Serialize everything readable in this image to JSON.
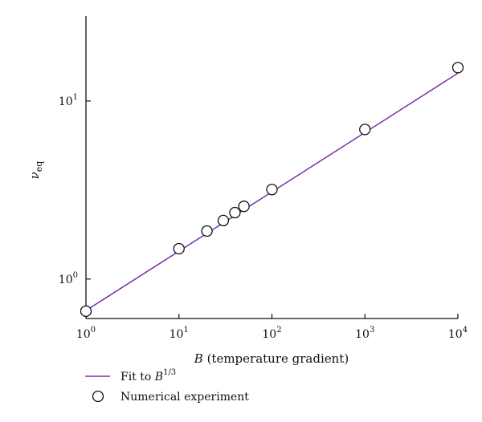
{
  "chart_data": {
    "type": "scatter",
    "title": "",
    "xscale": "log",
    "yscale": "log",
    "xlim": [
      1,
      10000
    ],
    "ylim": [
      0.6,
      30
    ],
    "grid": false,
    "legend_position": "bottom-left",
    "xlabel": {
      "symbol": "B",
      "text": " (temperature gradient)"
    },
    "ylabel": {
      "symbol": "ν",
      "subscript": "eq"
    },
    "x_ticks": [
      {
        "value": 1,
        "base": "10",
        "exp": "0"
      },
      {
        "value": 10,
        "base": "10",
        "exp": "1"
      },
      {
        "value": 100,
        "base": "10",
        "exp": "2"
      },
      {
        "value": 1000,
        "base": "10",
        "exp": "3"
      },
      {
        "value": 10000,
        "base": "10",
        "exp": "4"
      }
    ],
    "y_ticks": [
      {
        "value": 1,
        "base": "10",
        "exp": "0"
      },
      {
        "value": 10,
        "base": "10",
        "exp": "1"
      }
    ],
    "series": [
      {
        "name": "Numerical experiment",
        "kind": "markers",
        "marker": "open-circle",
        "x": [
          1,
          10,
          20,
          30,
          40,
          50,
          100,
          1000,
          10000
        ],
        "y": [
          0.66,
          1.48,
          1.86,
          2.13,
          2.36,
          2.56,
          3.18,
          6.92,
          15.4
        ]
      },
      {
        "name": "Fit to B^(1/3)",
        "kind": "line",
        "exponent": 0.3333,
        "coefficient": 0.665,
        "x": [
          1,
          10000
        ],
        "color": "#7b2fa8"
      }
    ],
    "legend": {
      "line_label_prefix": "Fit to ",
      "line_label_symbol": "B",
      "line_label_exp": "1/3",
      "marker_label": "Numerical experiment"
    }
  }
}
